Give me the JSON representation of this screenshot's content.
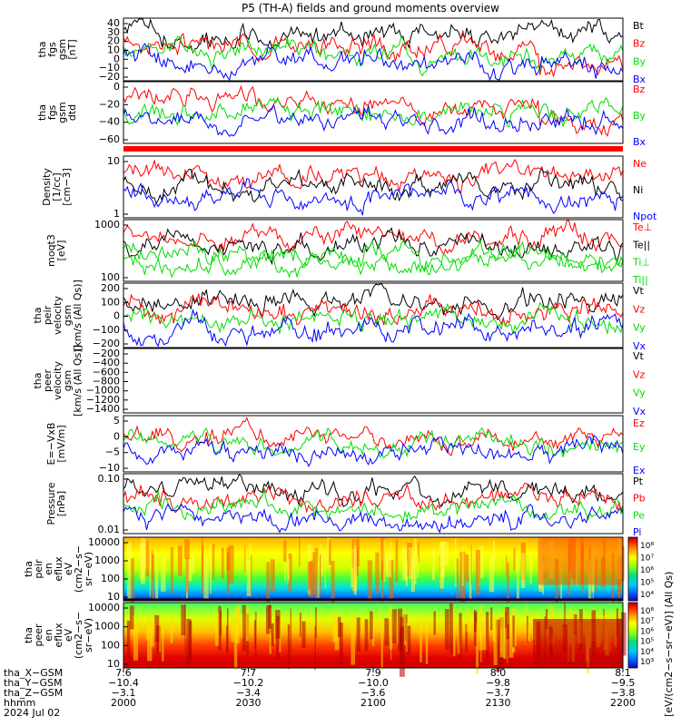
{
  "title": "P5 (TH-A) fields and ground moments overview",
  "colors": {
    "black": "#000000",
    "red": "#ff0000",
    "green": "#00dd00",
    "blue": "#0000ff",
    "frame": "#000000"
  },
  "chart_data": [
    {
      "type": "line",
      "ylabel": [
        "tha",
        "fgs",
        "gsm",
        "[nT]"
      ],
      "yticks": [
        "40",
        "30",
        "20",
        "10",
        "0",
        "−10",
        "−20"
      ],
      "ylim": [
        -25,
        42
      ],
      "legend": [
        {
          "label": "Bt",
          "color": "black"
        },
        {
          "label": "Bz",
          "color": "red"
        },
        {
          "label": "By",
          "color": "green"
        },
        {
          "label": "Bx",
          "color": "blue"
        }
      ]
    },
    {
      "type": "line",
      "ylabel": [
        "tha",
        "fgs",
        "gsm",
        "dtd"
      ],
      "yticks": [
        "0",
        "−20",
        "−40",
        "−60"
      ],
      "ylim": [
        -70,
        10
      ],
      "legend": [
        {
          "label": "Bz",
          "color": "red"
        },
        {
          "label": "By",
          "color": "green"
        },
        {
          "label": "Bx",
          "color": "blue"
        }
      ]
    },
    {
      "type": "line",
      "ylabel": [
        "Density",
        "[1/cc]",
        "[cm−3]"
      ],
      "yticks": [
        "10",
        "1"
      ],
      "scale": "log",
      "legend": [
        {
          "label": "Ne",
          "color": "red"
        },
        {
          "label": "Ni",
          "color": "black"
        },
        {
          "label": "Npot",
          "color": "blue"
        }
      ]
    },
    {
      "type": "line",
      "ylabel": [
        "moqt3",
        "[eV]"
      ],
      "yticks": [
        "1000",
        "100"
      ],
      "scale": "log",
      "legend": [
        {
          "label": "Te⊥",
          "color": "red"
        },
        {
          "label": "Te||",
          "color": "black"
        },
        {
          "label": "Ti⊥",
          "color": "green"
        },
        {
          "label": "Ti||",
          "color": "green"
        }
      ]
    },
    {
      "type": "line",
      "ylabel": [
        "tha",
        "peir",
        "velocity",
        "gsm",
        "[km/s (All Qs)]"
      ],
      "yticks": [
        "200",
        "100",
        "0",
        "−100",
        "−200"
      ],
      "ylim": [
        -220,
        300
      ],
      "legend": [
        {
          "label": "Vt",
          "color": "black"
        },
        {
          "label": "Vz",
          "color": "red"
        },
        {
          "label": "Vy",
          "color": "green"
        },
        {
          "label": "Vx",
          "color": "blue"
        }
      ]
    },
    {
      "type": "line",
      "ylabel": [
        "tha",
        "peer",
        "velocity",
        "gsm",
        "[km/s (All Qs)]"
      ],
      "yticks": [
        "−200",
        "−400",
        "−600",
        "−800",
        "−1000",
        "−1200",
        "−1400"
      ],
      "ylim": [
        -1500,
        -150
      ],
      "legend": [
        {
          "label": "Vt",
          "color": "black"
        },
        {
          "label": "Vz",
          "color": "red"
        },
        {
          "label": "Vy",
          "color": "green"
        },
        {
          "label": "Vx",
          "color": "blue"
        }
      ]
    },
    {
      "type": "line",
      "ylabel": [
        "E=−VxB",
        "[mV/m]"
      ],
      "yticks": [
        "5",
        "0",
        "−5",
        "−10"
      ],
      "ylim": [
        -13,
        10
      ],
      "legend": [
        {
          "label": "Ez",
          "color": "red"
        },
        {
          "label": "Ey",
          "color": "green"
        },
        {
          "label": "Ex",
          "color": "blue"
        }
      ]
    },
    {
      "type": "line",
      "ylabel": [
        "Pressure",
        "[nPa]"
      ],
      "yticks": [
        "0.10",
        "0.01"
      ],
      "scale": "log",
      "legend": [
        {
          "label": "Pt",
          "color": "black"
        },
        {
          "label": "Pb",
          "color": "red"
        },
        {
          "label": "Pe",
          "color": "green"
        },
        {
          "label": "Pi",
          "color": "blue"
        }
      ]
    },
    {
      "type": "heatmap",
      "ylabel": [
        "tha",
        "peir",
        "en",
        "eflux",
        "eV",
        "(cm2−s−",
        "sr−eV)"
      ],
      "yticks": [
        "10000",
        "1000",
        "100",
        "10"
      ],
      "colorbar_ticks": [
        "10⁸",
        "10⁷",
        "10⁶",
        "10⁵",
        "10⁴"
      ]
    },
    {
      "type": "heatmap",
      "ylabel": [
        "tha",
        "peer",
        "en",
        "eflux",
        "eV",
        "(cm2−s−",
        "sr−eV)"
      ],
      "yticks": [
        "10000",
        "1000",
        "100",
        "10"
      ],
      "colorbar_ticks": [
        "10⁸",
        "10⁷",
        "10⁶",
        "10⁵",
        "10⁴",
        "10³"
      ]
    }
  ],
  "colorbar_label": "[eV/(cm2−s−sr−eV)] (All Qs)",
  "xaxis": {
    "row_labels": [
      "tha_X−GSM",
      "tha_Y−GSM",
      "tha_Z−GSM",
      "hhmm",
      "2024 Jul 02"
    ],
    "columns": [
      {
        "values": [
          "7.6",
          "−10.4",
          "−3.1",
          "2000"
        ]
      },
      {
        "values": [
          "7.7",
          "−10.2",
          "−3.4",
          "2030"
        ]
      },
      {
        "values": [
          "7.9",
          "−10.0",
          "−3.6",
          "2100"
        ]
      },
      {
        "values": [
          "8.0",
          "−9.8",
          "−3.7",
          "2130"
        ]
      },
      {
        "values": [
          "8.1",
          "−9.5",
          "−3.8",
          "2200"
        ]
      }
    ]
  }
}
